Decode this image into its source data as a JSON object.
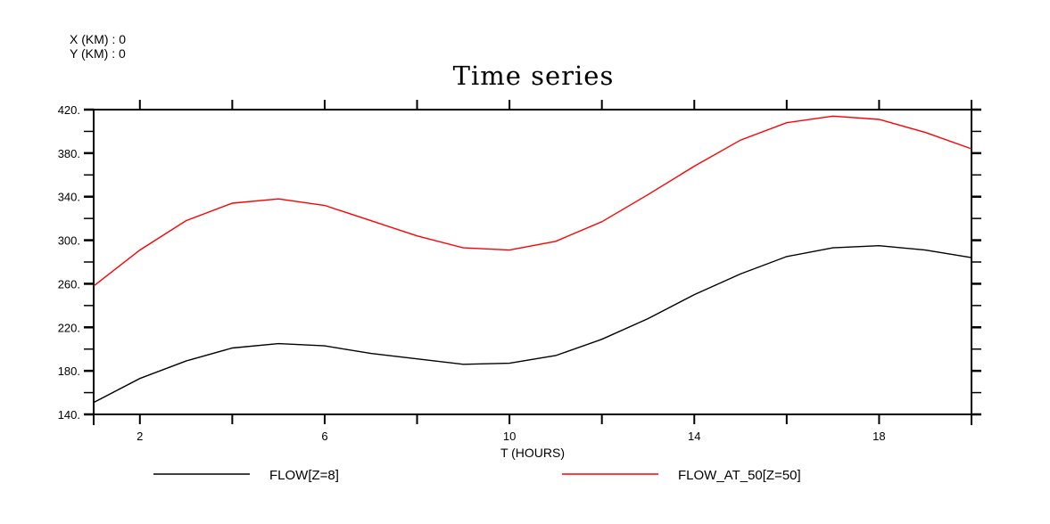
{
  "header": {
    "x_label": "X (KM) : 0",
    "y_label": "Y (KM) : 0"
  },
  "chart_data": {
    "type": "line",
    "title": "Time series",
    "xlabel": "T (HOURS)",
    "ylabel": "",
    "xlim": [
      1,
      20
    ],
    "ylim": [
      140,
      420
    ],
    "x_tick_labels": [
      "2",
      "6",
      "10",
      "14",
      "18"
    ],
    "x_tick_label_values": [
      2,
      6,
      10,
      14,
      18
    ],
    "x_tick_values": [
      2,
      4,
      6,
      8,
      10,
      12,
      14,
      16,
      18,
      20
    ],
    "y_tick_labels": [
      "140.",
      "180.",
      "220.",
      "260.",
      "300.",
      "340.",
      "380.",
      "420."
    ],
    "y_tick_label_values": [
      140,
      180,
      220,
      260,
      300,
      340,
      380,
      420
    ],
    "y_minor_step": 20,
    "grid": false,
    "legend_position": "bottom",
    "x": [
      1,
      2,
      3,
      4,
      5,
      6,
      7,
      8,
      9,
      10,
      11,
      12,
      13,
      14,
      15,
      16,
      17,
      18,
      19,
      20
    ],
    "series": [
      {
        "name": "FLOW[Z=8]",
        "color": "#000000",
        "values": [
          151,
          173,
          189,
          201,
          205,
          203,
          196,
          191,
          186,
          187,
          194,
          209,
          228,
          250,
          269,
          285,
          293,
          295,
          291,
          284
        ]
      },
      {
        "name": "FLOW_AT_50[Z=50]",
        "color": "#ff0000",
        "values": [
          258,
          291,
          318,
          334,
          338,
          332,
          318,
          304,
          293,
          291,
          299,
          317,
          342,
          368,
          392,
          408,
          414,
          411,
          399,
          384
        ]
      }
    ]
  }
}
